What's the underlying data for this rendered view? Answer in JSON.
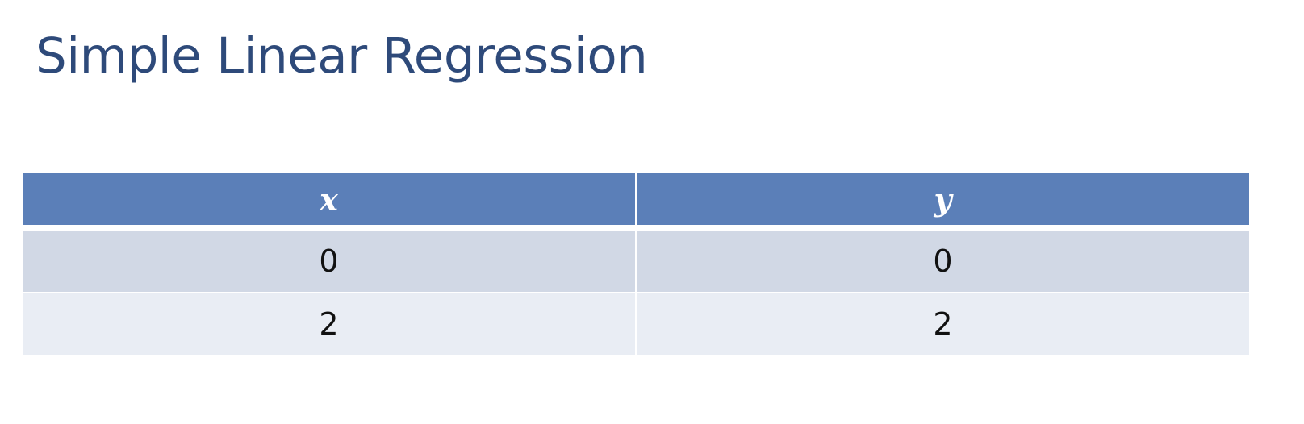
{
  "slide": {
    "title": "Simple Linear Regression"
  },
  "table": {
    "headers": [
      "x",
      "y"
    ],
    "rows": [
      [
        "0",
        "0"
      ],
      [
        "2",
        "2"
      ]
    ]
  },
  "colors": {
    "title": "#2e4a7a",
    "header_background": "#5b7fb8",
    "row_odd_background": "#d1d8e5",
    "row_even_background": "#e9edf4"
  }
}
